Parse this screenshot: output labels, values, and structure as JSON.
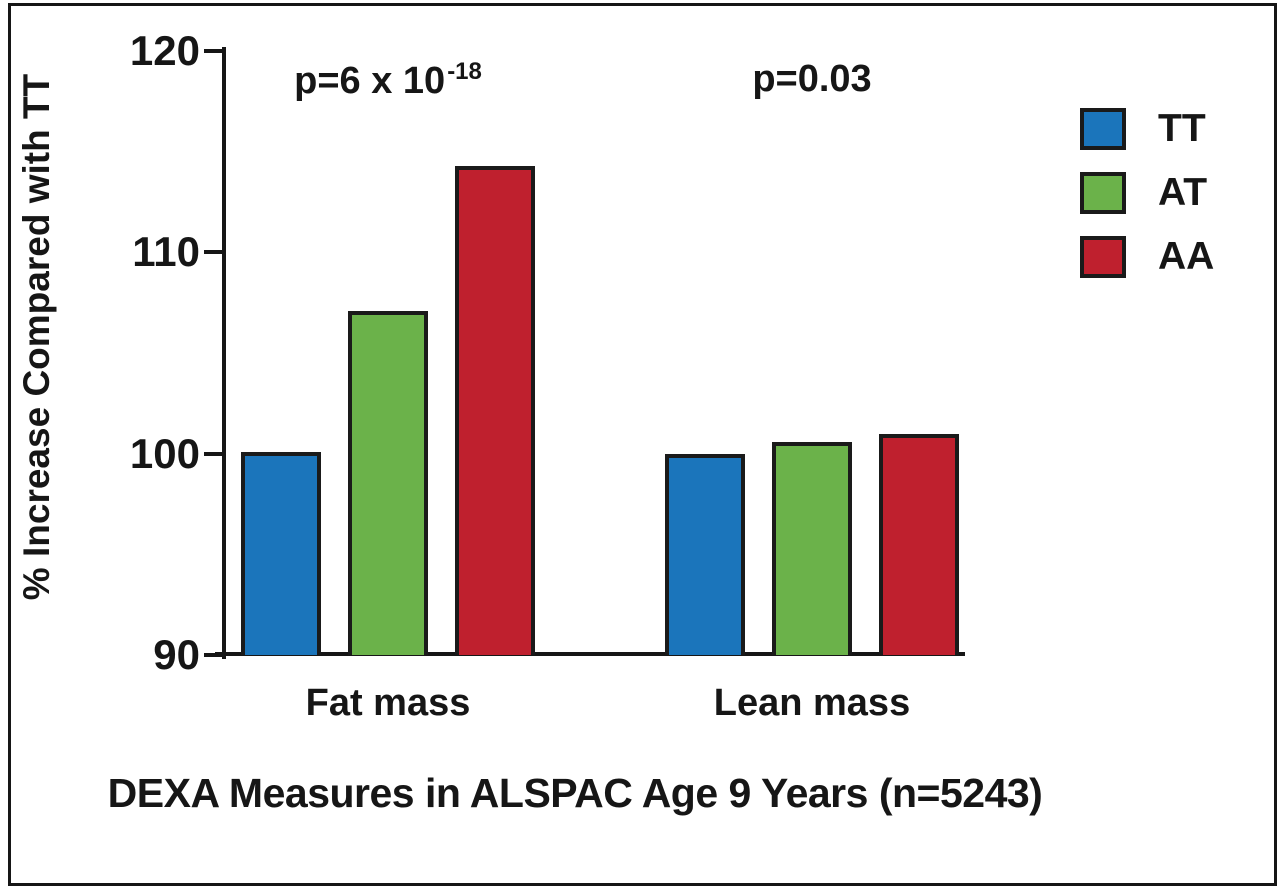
{
  "chart_data": {
    "type": "bar",
    "title": "DEXA Measures in ALSPAC Age 9 Years (n=5243)",
    "ylabel": "% Increase Compared with TT",
    "xlabel": "",
    "categories": [
      "Fat mass",
      "Lean mass"
    ],
    "series": [
      {
        "name": "TT",
        "color": "#1b75bb",
        "values": [
          100.1,
          100.0
        ]
      },
      {
        "name": "AT",
        "color": "#6bb24a",
        "values": [
          107.1,
          100.6
        ]
      },
      {
        "name": "AA",
        "color": "#bf202e",
        "values": [
          114.3,
          101.0
        ]
      }
    ],
    "ylim": [
      90,
      120
    ],
    "yticks": [
      90,
      100,
      110,
      120
    ],
    "grid": false,
    "legend_position": "upper-right",
    "bar_outline_color": "#1a1a1a",
    "annotations": [
      {
        "category_index": 0,
        "text": "p=6 x 10^-18",
        "base": "p=6 x 10",
        "exponent": "-18"
      },
      {
        "category_index": 1,
        "text": "p=0.03",
        "base": "p=0.03",
        "exponent": ""
      }
    ]
  }
}
